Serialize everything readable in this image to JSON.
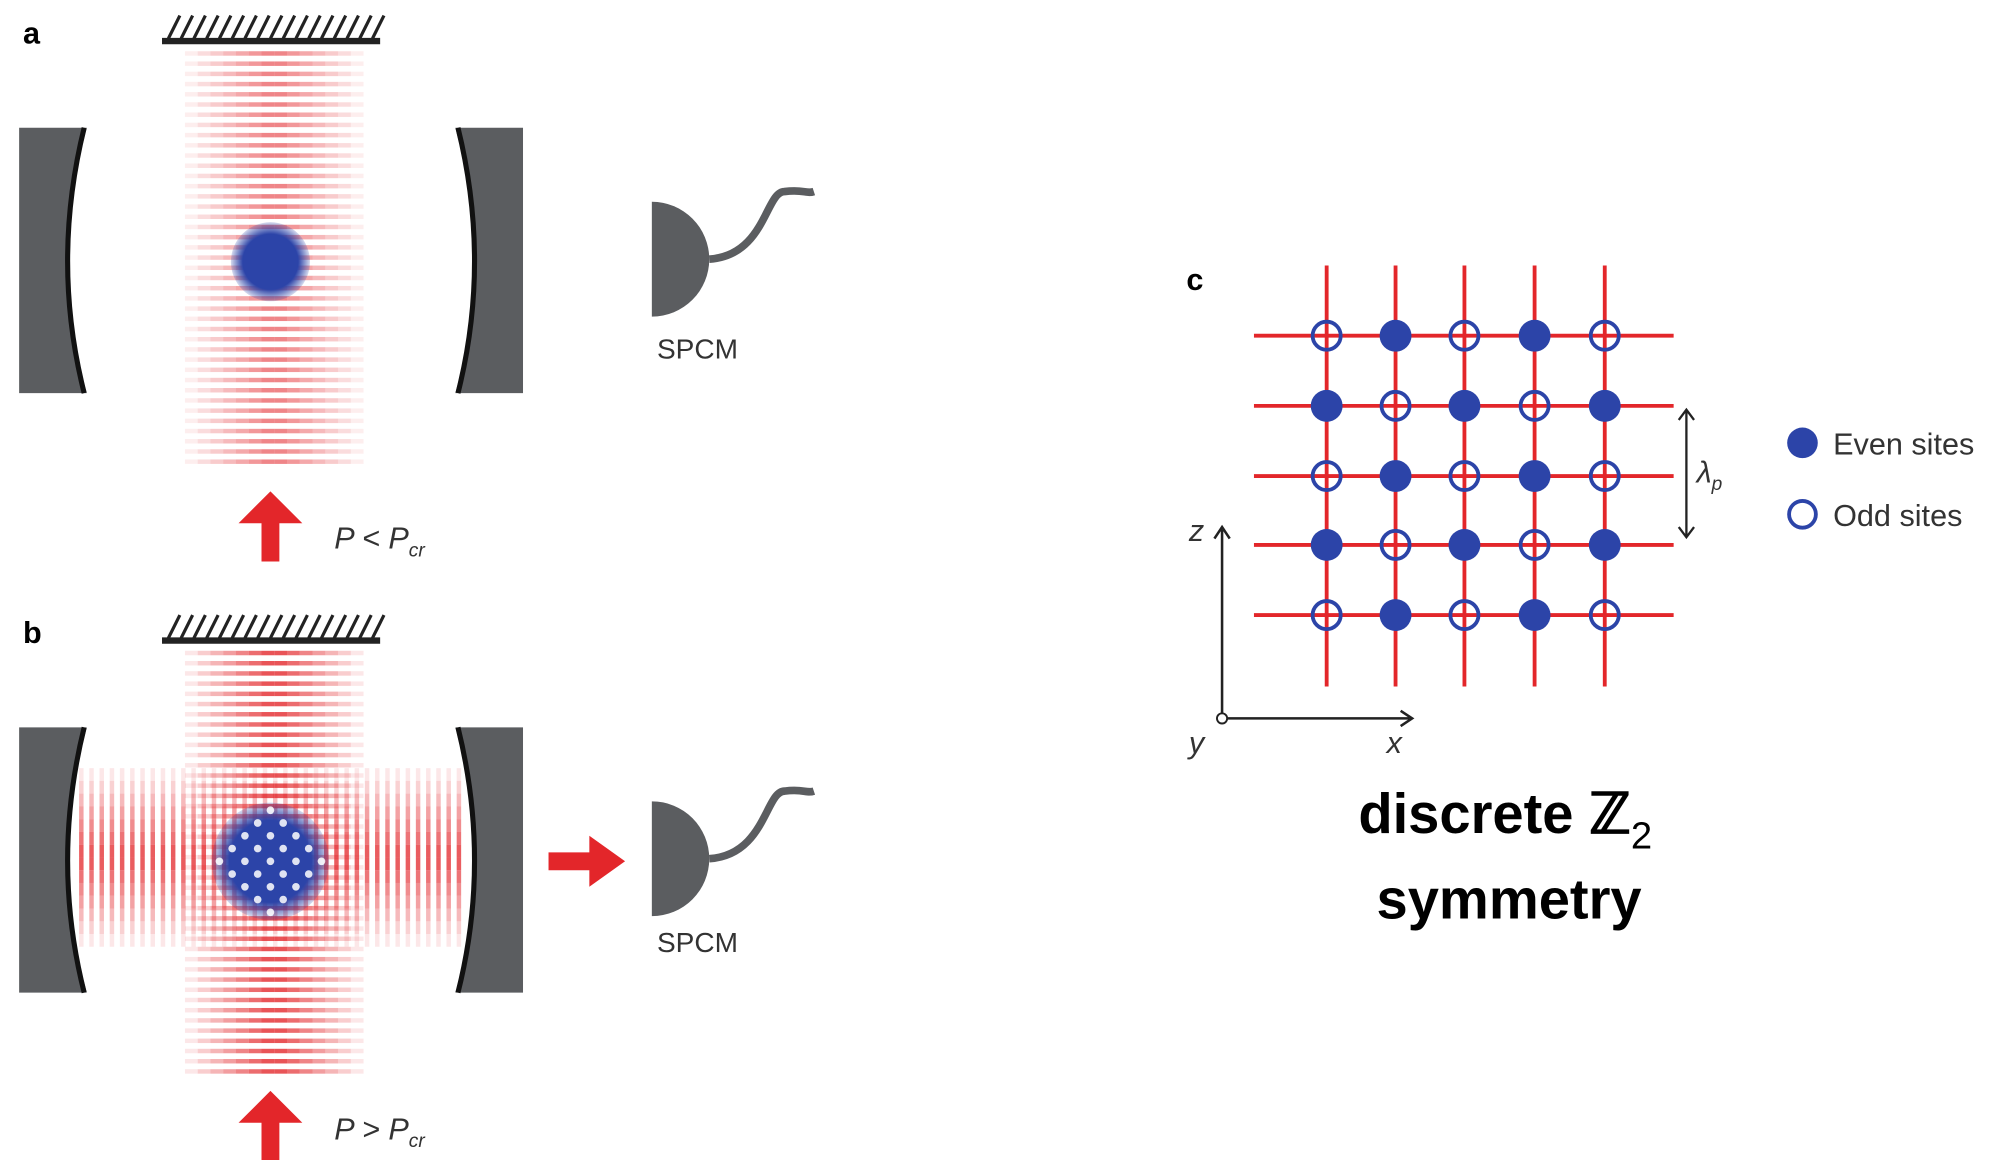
{
  "panels": [
    {
      "label": "a",
      "detector": "SPCM",
      "pump": {
        "main": "P < P",
        "sub": "cr"
      }
    },
    {
      "label": "b",
      "detector": "SPCM",
      "pump": {
        "main": "P > P",
        "sub": "cr"
      }
    },
    {
      "label": "c",
      "axes": {
        "z": "z",
        "y": "y",
        "x": "x"
      },
      "spacing": {
        "main": "λ",
        "sub": "p"
      },
      "legend": [
        "Even sites",
        "Odd sites"
      ],
      "caption": {
        "line1": "discrete ℤ",
        "sub": "2",
        "line2": "symmetry"
      }
    }
  ]
}
